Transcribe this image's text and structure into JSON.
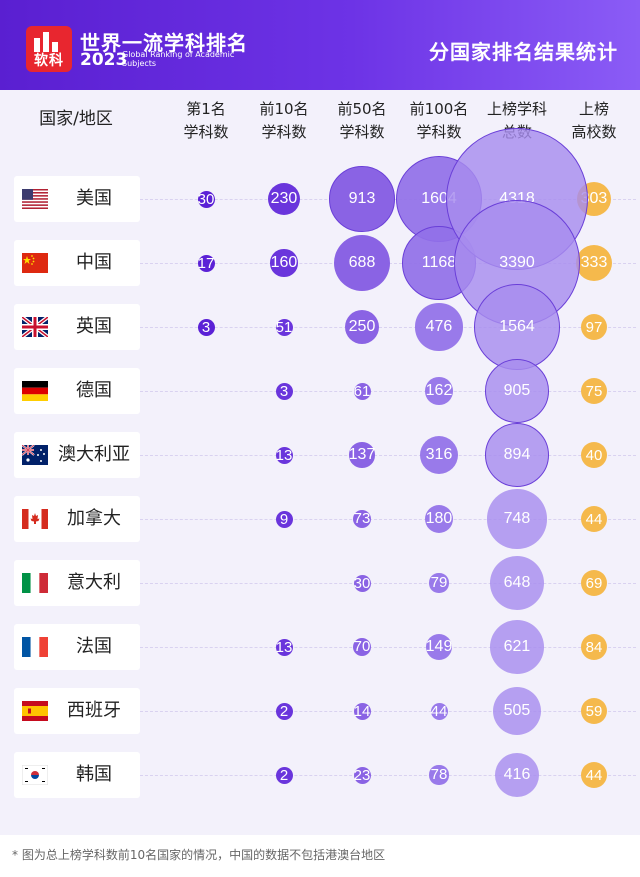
{
  "header": {
    "logo_text": "软科",
    "title": "世界一流学科排名",
    "year": "2023",
    "subtitle_en": "Global Ranking of Academic Subjects",
    "right_title": "分国家排名结果统计"
  },
  "columns": [
    {
      "key": "country",
      "lines": [
        "国家/地区"
      ]
    },
    {
      "key": "top1",
      "lines": [
        "第1名",
        "学科数"
      ]
    },
    {
      "key": "top10",
      "lines": [
        "前10名",
        "学科数"
      ]
    },
    {
      "key": "top50",
      "lines": [
        "前50名",
        "学科数"
      ]
    },
    {
      "key": "top100",
      "lines": [
        "前100名",
        "学科数"
      ]
    },
    {
      "key": "total",
      "lines": [
        "上榜学科",
        "总数"
      ]
    },
    {
      "key": "univ",
      "lines": [
        "上榜",
        "高校数"
      ]
    }
  ],
  "chart_data": {
    "type": "table",
    "categories": [
      "美国",
      "中国",
      "英国",
      "德国",
      "澳大利亚",
      "加拿大",
      "意大利",
      "法国",
      "西班牙",
      "韩国"
    ],
    "flags": [
      "us-flag-icon",
      "cn-flag-icon",
      "uk-flag-icon",
      "de-flag-icon",
      "au-flag-icon",
      "ca-flag-icon",
      "it-flag-icon",
      "fr-flag-icon",
      "es-flag-icon",
      "kr-flag-icon"
    ],
    "series": [
      {
        "key": "top1",
        "values": [
          30,
          17,
          3,
          null,
          null,
          null,
          null,
          null,
          null,
          null
        ]
      },
      {
        "key": "top10",
        "values": [
          230,
          160,
          51,
          3,
          13,
          9,
          null,
          13,
          2,
          2
        ]
      },
      {
        "key": "top50",
        "values": [
          913,
          688,
          250,
          61,
          137,
          73,
          30,
          70,
          14,
          23
        ]
      },
      {
        "key": "top100",
        "values": [
          1604,
          1168,
          476,
          162,
          316,
          180,
          79,
          149,
          44,
          78
        ]
      },
      {
        "key": "total",
        "values": [
          4318,
          3390,
          1564,
          905,
          894,
          748,
          648,
          621,
          505,
          416
        ]
      },
      {
        "key": "univ",
        "values": [
          303,
          333,
          97,
          75,
          40,
          44,
          69,
          84,
          59,
          44
        ]
      }
    ],
    "colors": {
      "top1": "#5b21d6",
      "top10": "#6a35dc",
      "top50": "#8a63e4",
      "top100": "#9b7ae8",
      "total": "#b7a0f0",
      "univ": "#f5b94c"
    }
  },
  "footnote": "* 图为总上榜学科数前10名国家的情况，中国的数据不包括港澳台地区"
}
